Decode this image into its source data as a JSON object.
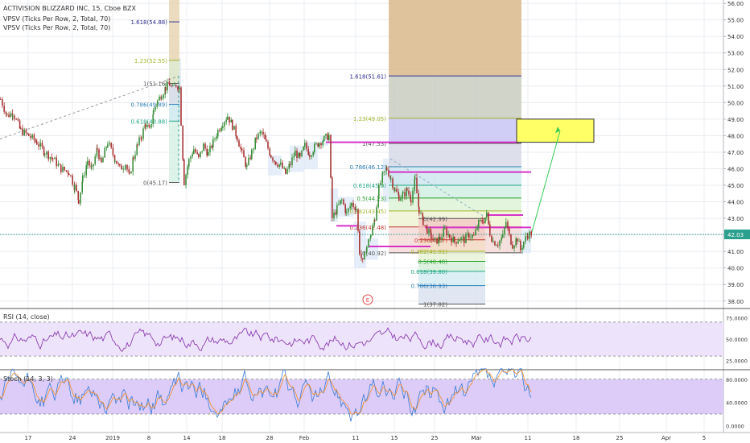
{
  "header": {
    "symbol_line": "ACTIVISION BLIZZARD INC, 15, Cboe BZX",
    "indicator1": "VPSV (Ticks Per Row, 2, Total, 70)",
    "indicator2": "VPSV (Ticks Per Row, 2, Total, 70)"
  },
  "colors": {
    "grid": "#e9ecf1",
    "up": "#3b8f3b",
    "down": "#a83434",
    "rsi_line": "#8c3fb0",
    "rsi_band": "#ede4fb",
    "stoch_band": "#d8c7f6",
    "stoch_k": "#3b7bd6",
    "stoch_d": "#f28c28",
    "magenta": "#d633c9",
    "price_line": "#2ca08f",
    "axis_text": "#333333",
    "axis_border": "#b2b5be"
  },
  "chart_data": [
    {
      "type": "candlestick",
      "title": "ACTIVISION BLIZZARD INC, 15, Cboe BZX",
      "y_axis_ticks": [
        "56.00",
        "55.00",
        "54.00",
        "53.00",
        "52.00",
        "51.00",
        "50.00",
        "49.00",
        "48.00",
        "47.00",
        "46.00",
        "45.00",
        "44.00",
        "43.00",
        "42.00",
        "41.00",
        "40.00",
        "39.00",
        "38.00"
      ],
      "ylim": [
        37.6,
        56.2
      ],
      "x_axis_ticks": [
        "17",
        "24",
        "2019",
        "8",
        "14",
        "18",
        "28",
        "Feb",
        "11",
        "15",
        "25",
        "Mar",
        "11",
        "18",
        "25",
        "Apr",
        "5"
      ],
      "last_price": "42.03",
      "price_path": [
        [
          0,
          50.2
        ],
        [
          8,
          49.2
        ],
        [
          15,
          49.4
        ],
        [
          25,
          48.3
        ],
        [
          35,
          48.0
        ],
        [
          45,
          47.6
        ],
        [
          55,
          47.0
        ],
        [
          65,
          46.6
        ],
        [
          75,
          46.0
        ],
        [
          85,
          45.8
        ],
        [
          92,
          44.9
        ],
        [
          97,
          44.1
        ],
        [
          102,
          45.4
        ],
        [
          108,
          46.5
        ],
        [
          113,
          45.9
        ],
        [
          120,
          47.2
        ],
        [
          125,
          46.3
        ],
        [
          133,
          47.6
        ],
        [
          142,
          46.6
        ],
        [
          148,
          46.0
        ],
        [
          155,
          46.3
        ],
        [
          160,
          45.5
        ],
        [
          165,
          46.7
        ],
        [
          170,
          47.4
        ],
        [
          175,
          48.0
        ],
        [
          180,
          48.7
        ],
        [
          185,
          48.3
        ],
        [
          190,
          49.5
        ],
        [
          195,
          50.1
        ],
        [
          200,
          50.5
        ],
        [
          205,
          50.9
        ],
        [
          210,
          51.1
        ],
        [
          214,
          50.8
        ],
        [
          218,
          51.1
        ],
        [
          222,
          50.9
        ],
        [
          228,
          45.2
        ],
        [
          234,
          46.5
        ],
        [
          240,
          47.2
        ],
        [
          246,
          46.6
        ],
        [
          252,
          47.4
        ],
        [
          258,
          46.9
        ],
        [
          264,
          47.6
        ],
        [
          270,
          48.3
        ],
        [
          276,
          48.8
        ],
        [
          282,
          49.2
        ],
        [
          288,
          48.6
        ],
        [
          294,
          47.9
        ],
        [
          300,
          46.9
        ],
        [
          306,
          46.1
        ],
        [
          312,
          47.0
        ],
        [
          318,
          47.9
        ],
        [
          324,
          48.2
        ],
        [
          330,
          47.5
        ],
        [
          336,
          46.8
        ],
        [
          342,
          46.4
        ],
        [
          348,
          46.2
        ],
        [
          354,
          45.7
        ],
        [
          360,
          46.3
        ],
        [
          366,
          47.0
        ],
        [
          372,
          46.6
        ],
        [
          378,
          47.4
        ],
        [
          384,
          46.9
        ],
        [
          390,
          47.3
        ],
        [
          396,
          47.6
        ],
        [
          402,
          47.8
        ],
        [
          408,
          48.0
        ],
        [
          412,
          43.0
        ],
        [
          418,
          43.6
        ],
        [
          424,
          44.1
        ],
        [
          430,
          43.3
        ],
        [
          436,
          43.9
        ],
        [
          442,
          43.6
        ],
        [
          446,
          41.0
        ],
        [
          450,
          40.3
        ],
        [
          455,
          41.3
        ],
        [
          460,
          42.0
        ],
        [
          465,
          43.0
        ],
        [
          470,
          44.8
        ],
        [
          475,
          45.6
        ],
        [
          480,
          46.0
        ],
        [
          485,
          45.4
        ],
        [
          490,
          44.7
        ],
        [
          495,
          44.3
        ],
        [
          500,
          44.4
        ],
        [
          505,
          44.7
        ],
        [
          510,
          44.2
        ],
        [
          515,
          45.3
        ],
        [
          520,
          43.5
        ],
        [
          525,
          42.8
        ],
        [
          530,
          42.3
        ],
        [
          535,
          41.9
        ],
        [
          540,
          41.6
        ],
        [
          546,
          41.8
        ],
        [
          552,
          42.3
        ],
        [
          558,
          41.9
        ],
        [
          564,
          41.6
        ],
        [
          570,
          41.8
        ],
        [
          576,
          41.7
        ],
        [
          582,
          42.0
        ],
        [
          588,
          41.9
        ],
        [
          594,
          42.7
        ],
        [
          600,
          42.9
        ],
        [
          604,
          43.2
        ],
        [
          608,
          42.1
        ],
        [
          612,
          41.6
        ],
        [
          618,
          41.5
        ],
        [
          624,
          41.9
        ],
        [
          628,
          42.8
        ],
        [
          632,
          41.9
        ],
        [
          636,
          41.4
        ],
        [
          642,
          41.8
        ],
        [
          646,
          41.1
        ],
        [
          650,
          41.6
        ],
        [
          655,
          42.0
        ],
        [
          660,
          42.1
        ]
      ],
      "fib_left": {
        "levels": [
          {
            "label": "1.618(54.88)",
            "value": 54.88,
            "color": "#2d2d8f"
          },
          {
            "label": "1.23(52.55)",
            "value": 52.55,
            "color": "#a3b52a"
          },
          {
            "label": "1(51.16)",
            "value": 51.16,
            "color": "#555555"
          },
          {
            "label": "0.786(49.89)",
            "value": 49.89,
            "color": "#2c7fb8"
          },
          {
            "label": "0.618(48.88)",
            "value": 48.88,
            "color": "#22a884"
          },
          {
            "label": "0(45.17)",
            "value": 45.17,
            "color": "#555555"
          }
        ]
      },
      "fib_right": {
        "levels": [
          {
            "label": "1.618(51.61)",
            "value": 51.61,
            "color": "#2d2d8f"
          },
          {
            "label": "1.23(49.05)",
            "value": 49.05,
            "color": "#a3b52a"
          },
          {
            "label": "1(47.53)",
            "value": 47.53,
            "color": "#555555"
          },
          {
            "label": "0.786(46.12)",
            "value": 46.12,
            "color": "#2c7fb8"
          },
          {
            "label": "0.618(45.0)",
            "value": 45.0,
            "color": "#22a884"
          },
          {
            "label": "0.5(44.23)",
            "value": 44.23,
            "color": "#2ca02c"
          },
          {
            "label": "0.382(43.45)",
            "value": 43.45,
            "color": "#a3b52a"
          },
          {
            "label": "0.236(42.48)",
            "value": 42.48,
            "color": "#c0392b"
          },
          {
            "label": "0(40.92)",
            "value": 40.92,
            "color": "#555555"
          }
        ]
      },
      "fib_mid": {
        "levels": [
          {
            "label": "0(42.99)",
            "value": 42.99,
            "color": "#555555"
          },
          {
            "label": "0.236(41.7)",
            "value": 41.7,
            "color": "#c0392b"
          },
          {
            "label": "0.382(41.01)",
            "value": 41.01,
            "color": "#a3b52a"
          },
          {
            "label": "0.5(40.40)",
            "value": 40.4,
            "color": "#2ca02c"
          },
          {
            "label": "0.618(39.80)",
            "value": 39.8,
            "color": "#22a884"
          },
          {
            "label": "0.786(38.93)",
            "value": 38.93,
            "color": "#2c7fb8"
          },
          {
            "label": "1(37.82)",
            "value": 37.82,
            "color": "#555555"
          }
        ]
      },
      "magenta_levels": [
        47.6,
        45.8,
        42.55,
        41.3,
        43.2
      ],
      "target_box": {
        "low": 47.6,
        "high": 49.0
      },
      "earnings_marker": "E"
    },
    {
      "type": "line",
      "title": "RSI (14, close)",
      "y_axis_ticks": [
        "75.0000",
        "50.0000",
        "25.0000"
      ],
      "ylim": [
        15,
        85
      ],
      "band": [
        30,
        70
      ]
    },
    {
      "type": "line",
      "title": "Stoch (14, 3, 3)",
      "y_axis_ticks": [
        "80.0000",
        "40.0000",
        "0.0000"
      ],
      "ylim": [
        -5,
        95
      ],
      "band": [
        20,
        80
      ]
    }
  ]
}
